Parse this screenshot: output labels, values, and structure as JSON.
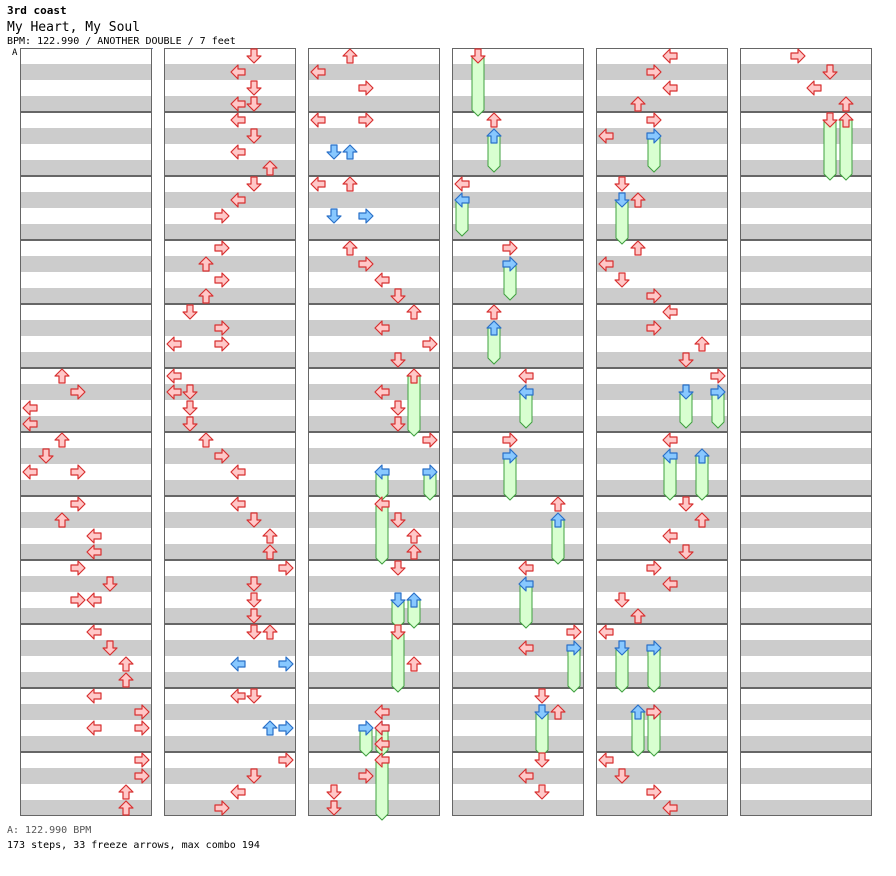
{
  "header": {
    "artist": "3rd coast",
    "title": "My Heart, My Soul",
    "meta": "BPM: 122.990 / ANOTHER DOUBLE / 7 feet",
    "section_marker": "A"
  },
  "footer": {
    "bpm_line": "A: 122.990 BPM",
    "stats_line": "173 steps, 33 freeze arrows, max combo 194"
  },
  "colors": {
    "arrow_red_fill": "#ffc8c8",
    "arrow_red_stroke": "#d83030",
    "arrow_blue_fill": "#88c8ff",
    "arrow_blue_stroke": "#2a70c8",
    "freeze_fill": "#d8ffd0",
    "freeze_stroke": "#40a040",
    "stripe_grey": "#cccccc",
    "measure_border": "#666666"
  },
  "chart_layout": {
    "columns": 6,
    "measures_per_column": 12,
    "rows_per_measure": 8,
    "lanes": 8
  },
  "steps": [
    {
      "c": 0,
      "m": 5,
      "r": 0,
      "l": [
        2
      ]
    },
    {
      "c": 0,
      "m": 5,
      "r": 2,
      "l": [
        3
      ]
    },
    {
      "c": 0,
      "m": 5,
      "r": 4,
      "l": [
        0
      ]
    },
    {
      "c": 0,
      "m": 5,
      "r": 6,
      "l": [
        0
      ]
    },
    {
      "c": 0,
      "m": 6,
      "r": 0,
      "l": [
        2
      ]
    },
    {
      "c": 0,
      "m": 6,
      "r": 2,
      "l": [
        1
      ]
    },
    {
      "c": 0,
      "m": 6,
      "r": 4,
      "l": [
        0,
        3
      ]
    },
    {
      "c": 0,
      "m": 7,
      "r": 0,
      "l": [
        3
      ]
    },
    {
      "c": 0,
      "m": 7,
      "r": 2,
      "l": [
        2
      ]
    },
    {
      "c": 0,
      "m": 7,
      "r": 4,
      "l": [
        4
      ]
    },
    {
      "c": 0,
      "m": 7,
      "r": 6,
      "l": [
        4
      ]
    },
    {
      "c": 0,
      "m": 8,
      "r": 0,
      "l": [
        3
      ]
    },
    {
      "c": 0,
      "m": 8,
      "r": 2,
      "l": [
        5
      ]
    },
    {
      "c": 0,
      "m": 8,
      "r": 4,
      "l": [
        3,
        4
      ]
    },
    {
      "c": 0,
      "m": 9,
      "r": 0,
      "l": [
        4
      ]
    },
    {
      "c": 0,
      "m": 9,
      "r": 2,
      "l": [
        5
      ]
    },
    {
      "c": 0,
      "m": 9,
      "r": 4,
      "l": [
        6
      ]
    },
    {
      "c": 0,
      "m": 9,
      "r": 6,
      "l": [
        6
      ]
    },
    {
      "c": 0,
      "m": 10,
      "r": 0,
      "l": [
        4
      ]
    },
    {
      "c": 0,
      "m": 10,
      "r": 2,
      "l": [
        7
      ]
    },
    {
      "c": 0,
      "m": 10,
      "r": 4,
      "l": [
        4,
        7
      ]
    },
    {
      "c": 0,
      "m": 11,
      "r": 0,
      "l": [
        7
      ]
    },
    {
      "c": 0,
      "m": 11,
      "r": 2,
      "l": [
        7
      ]
    },
    {
      "c": 0,
      "m": 11,
      "r": 4,
      "l": [
        6
      ]
    },
    {
      "c": 0,
      "m": 11,
      "r": 6,
      "l": [
        6
      ]
    },
    {
      "c": 1,
      "m": 0,
      "r": 0,
      "l": [
        5
      ]
    },
    {
      "c": 1,
      "m": 0,
      "r": 2,
      "l": [
        4
      ]
    },
    {
      "c": 1,
      "m": 0,
      "r": 4,
      "l": [
        5
      ]
    },
    {
      "c": 1,
      "m": 0,
      "r": 6,
      "l": [
        4,
        5
      ]
    },
    {
      "c": 1,
      "m": 1,
      "r": 0,
      "l": [
        4
      ]
    },
    {
      "c": 1,
      "m": 1,
      "r": 2,
      "l": [
        5
      ]
    },
    {
      "c": 1,
      "m": 1,
      "r": 4,
      "l": [
        4
      ]
    },
    {
      "c": 1,
      "m": 1,
      "r": 6,
      "l": [
        6
      ]
    },
    {
      "c": 1,
      "m": 2,
      "r": 0,
      "l": [
        5
      ]
    },
    {
      "c": 1,
      "m": 2,
      "r": 2,
      "l": [
        4
      ]
    },
    {
      "c": 1,
      "m": 2,
      "r": 4,
      "l": [
        3
      ]
    },
    {
      "c": 1,
      "m": 3,
      "r": 0,
      "l": [
        3
      ]
    },
    {
      "c": 1,
      "m": 3,
      "r": 2,
      "l": [
        2
      ]
    },
    {
      "c": 1,
      "m": 3,
      "r": 4,
      "l": [
        3
      ]
    },
    {
      "c": 1,
      "m": 3,
      "r": 6,
      "l": [
        2
      ]
    },
    {
      "c": 1,
      "m": 4,
      "r": 0,
      "l": [
        1
      ]
    },
    {
      "c": 1,
      "m": 4,
      "r": 2,
      "l": [
        3
      ]
    },
    {
      "c": 1,
      "m": 4,
      "r": 4,
      "l": [
        0,
        3
      ]
    },
    {
      "c": 1,
      "m": 5,
      "r": 0,
      "l": [
        0
      ]
    },
    {
      "c": 1,
      "m": 5,
      "r": 2,
      "l": [
        0,
        1
      ]
    },
    {
      "c": 1,
      "m": 5,
      "r": 4,
      "l": [
        1
      ]
    },
    {
      "c": 1,
      "m": 5,
      "r": 6,
      "l": [
        1
      ]
    },
    {
      "c": 1,
      "m": 6,
      "r": 0,
      "l": [
        2
      ]
    },
    {
      "c": 1,
      "m": 6,
      "r": 2,
      "l": [
        3
      ]
    },
    {
      "c": 1,
      "m": 6,
      "r": 4,
      "l": [
        4
      ]
    },
    {
      "c": 1,
      "m": 7,
      "r": 0,
      "l": [
        4
      ]
    },
    {
      "c": 1,
      "m": 7,
      "r": 2,
      "l": [
        5
      ]
    },
    {
      "c": 1,
      "m": 7,
      "r": 4,
      "l": [
        6
      ]
    },
    {
      "c": 1,
      "m": 7,
      "r": 6,
      "l": [
        6
      ]
    },
    {
      "c": 1,
      "m": 8,
      "r": 0,
      "l": [
        7
      ]
    },
    {
      "c": 1,
      "m": 8,
      "r": 2,
      "l": [
        5
      ]
    },
    {
      "c": 1,
      "m": 8,
      "r": 4,
      "l": [
        5
      ]
    },
    {
      "c": 1,
      "m": 8,
      "r": 6,
      "l": [
        5
      ]
    },
    {
      "c": 1,
      "m": 9,
      "r": 0,
      "l": [
        5,
        6
      ]
    },
    {
      "c": 1,
      "m": 9,
      "r": 4,
      "l": [
        4,
        7
      ],
      "b": true
    },
    {
      "c": 1,
      "m": 10,
      "r": 0,
      "l": [
        4,
        5
      ]
    },
    {
      "c": 1,
      "m": 10,
      "r": 4,
      "l": [
        6,
        7
      ],
      "b": true
    },
    {
      "c": 1,
      "m": 11,
      "r": 0,
      "l": [
        7
      ]
    },
    {
      "c": 1,
      "m": 11,
      "r": 2,
      "l": [
        5
      ]
    },
    {
      "c": 1,
      "m": 11,
      "r": 4,
      "l": [
        4
      ]
    },
    {
      "c": 1,
      "m": 11,
      "r": 6,
      "l": [
        3
      ]
    },
    {
      "c": 2,
      "m": 0,
      "r": 0,
      "l": [
        2
      ]
    },
    {
      "c": 2,
      "m": 0,
      "r": 2,
      "l": [
        0
      ]
    },
    {
      "c": 2,
      "m": 0,
      "r": 4,
      "l": [
        3
      ]
    },
    {
      "c": 2,
      "m": 1,
      "r": 0,
      "l": [
        0,
        3
      ]
    },
    {
      "c": 2,
      "m": 1,
      "r": 4,
      "l": [
        1,
        2
      ],
      "b": true
    },
    {
      "c": 2,
      "m": 2,
      "r": 0,
      "l": [
        0,
        2
      ]
    },
    {
      "c": 2,
      "m": 2,
      "r": 4,
      "l": [
        1,
        3
      ],
      "b": true
    },
    {
      "c": 2,
      "m": 3,
      "r": 0,
      "l": [
        2
      ]
    },
    {
      "c": 2,
      "m": 3,
      "r": 2,
      "l": [
        3
      ]
    },
    {
      "c": 2,
      "m": 3,
      "r": 4,
      "l": [
        4
      ]
    },
    {
      "c": 2,
      "m": 3,
      "r": 6,
      "l": [
        5
      ]
    },
    {
      "c": 2,
      "m": 4,
      "r": 0,
      "l": [
        6
      ]
    },
    {
      "c": 2,
      "m": 4,
      "r": 2,
      "l": [
        4
      ]
    },
    {
      "c": 2,
      "m": 4,
      "r": 4,
      "l": [
        7
      ]
    },
    {
      "c": 2,
      "m": 4,
      "r": 6,
      "l": [
        5
      ]
    },
    {
      "c": 2,
      "m": 5,
      "r": 2,
      "l": [
        4
      ]
    },
    {
      "c": 2,
      "m": 5,
      "r": 4,
      "l": [
        5
      ]
    },
    {
      "c": 2,
      "m": 5,
      "r": 6,
      "l": [
        5
      ]
    },
    {
      "c": 2,
      "m": 6,
      "r": 0,
      "l": [
        7
      ]
    },
    {
      "c": 2,
      "m": 7,
      "r": 2,
      "l": [
        5
      ]
    },
    {
      "c": 2,
      "m": 7,
      "r": 4,
      "l": [
        6
      ]
    },
    {
      "c": 2,
      "m": 7,
      "r": 6,
      "l": [
        6
      ]
    },
    {
      "c": 2,
      "m": 8,
      "r": 0,
      "l": [
        5
      ]
    },
    {
      "c": 2,
      "m": 9,
      "r": 4,
      "l": [
        6
      ]
    },
    {
      "c": 2,
      "m": 10,
      "r": 2,
      "l": [
        4
      ]
    },
    {
      "c": 2,
      "m": 10,
      "r": 4,
      "l": [
        4
      ]
    },
    {
      "c": 2,
      "m": 10,
      "r": 6,
      "l": [
        4
      ]
    },
    {
      "c": 2,
      "m": 11,
      "r": 2,
      "l": [
        3
      ]
    },
    {
      "c": 2,
      "m": 11,
      "r": 4,
      "l": [
        1
      ]
    },
    {
      "c": 2,
      "m": 11,
      "r": 6,
      "l": [
        1
      ]
    },
    {
      "c": 3,
      "m": 1,
      "r": 0,
      "l": [
        2
      ]
    },
    {
      "c": 3,
      "m": 2,
      "r": 0,
      "l": [
        0
      ]
    },
    {
      "c": 3,
      "m": 3,
      "r": 0,
      "l": [
        3
      ]
    },
    {
      "c": 3,
      "m": 4,
      "r": 0,
      "l": [
        2
      ]
    },
    {
      "c": 3,
      "m": 5,
      "r": 0,
      "l": [
        4
      ]
    },
    {
      "c": 3,
      "m": 6,
      "r": 0,
      "l": [
        3
      ]
    },
    {
      "c": 3,
      "m": 7,
      "r": 0,
      "l": [
        6
      ]
    },
    {
      "c": 3,
      "m": 8,
      "r": 0,
      "l": [
        4
      ]
    },
    {
      "c": 3,
      "m": 9,
      "r": 0,
      "l": [
        7
      ]
    },
    {
      "c": 3,
      "m": 9,
      "r": 2,
      "l": [
        4
      ]
    },
    {
      "c": 3,
      "m": 10,
      "r": 0,
      "l": [
        5
      ]
    },
    {
      "c": 3,
      "m": 10,
      "r": 2,
      "l": [
        6
      ]
    },
    {
      "c": 3,
      "m": 11,
      "r": 0,
      "l": [
        5
      ]
    },
    {
      "c": 3,
      "m": 11,
      "r": 2,
      "l": [
        4
      ]
    },
    {
      "c": 3,
      "m": 11,
      "r": 4,
      "l": [
        5
      ]
    },
    {
      "c": 4,
      "m": 0,
      "r": 0,
      "l": [
        4
      ]
    },
    {
      "c": 4,
      "m": 0,
      "r": 2,
      "l": [
        3
      ]
    },
    {
      "c": 4,
      "m": 0,
      "r": 4,
      "l": [
        4
      ]
    },
    {
      "c": 4,
      "m": 0,
      "r": 6,
      "l": [
        2
      ]
    },
    {
      "c": 4,
      "m": 1,
      "r": 0,
      "l": [
        3
      ]
    },
    {
      "c": 4,
      "m": 1,
      "r": 2,
      "l": [
        0
      ]
    },
    {
      "c": 4,
      "m": 2,
      "r": 0,
      "l": [
        1
      ]
    },
    {
      "c": 4,
      "m": 2,
      "r": 2,
      "l": [
        2
      ]
    },
    {
      "c": 4,
      "m": 3,
      "r": 0,
      "l": [
        2
      ]
    },
    {
      "c": 4,
      "m": 3,
      "r": 2,
      "l": [
        0
      ]
    },
    {
      "c": 4,
      "m": 3,
      "r": 4,
      "l": [
        1
      ]
    },
    {
      "c": 4,
      "m": 3,
      "r": 6,
      "l": [
        3
      ]
    },
    {
      "c": 4,
      "m": 4,
      "r": 0,
      "l": [
        4
      ]
    },
    {
      "c": 4,
      "m": 4,
      "r": 2,
      "l": [
        3
      ]
    },
    {
      "c": 4,
      "m": 4,
      "r": 4,
      "l": [
        6
      ]
    },
    {
      "c": 4,
      "m": 4,
      "r": 6,
      "l": [
        5
      ]
    },
    {
      "c": 4,
      "m": 5,
      "r": 0,
      "l": [
        7
      ]
    },
    {
      "c": 4,
      "m": 6,
      "r": 0,
      "l": [
        4
      ]
    },
    {
      "c": 4,
      "m": 7,
      "r": 0,
      "l": [
        5
      ]
    },
    {
      "c": 4,
      "m": 7,
      "r": 2,
      "l": [
        6
      ]
    },
    {
      "c": 4,
      "m": 7,
      "r": 4,
      "l": [
        4
      ]
    },
    {
      "c": 4,
      "m": 7,
      "r": 6,
      "l": [
        5
      ]
    },
    {
      "c": 4,
      "m": 8,
      "r": 0,
      "l": [
        3
      ]
    },
    {
      "c": 4,
      "m": 8,
      "r": 2,
      "l": [
        4
      ]
    },
    {
      "c": 4,
      "m": 8,
      "r": 4,
      "l": [
        1
      ]
    },
    {
      "c": 4,
      "m": 8,
      "r": 6,
      "l": [
        2
      ]
    },
    {
      "c": 4,
      "m": 9,
      "r": 0,
      "l": [
        0
      ]
    },
    {
      "c": 4,
      "m": 10,
      "r": 2,
      "l": [
        3
      ]
    },
    {
      "c": 4,
      "m": 11,
      "r": 0,
      "l": [
        0
      ]
    },
    {
      "c": 4,
      "m": 11,
      "r": 2,
      "l": [
        1
      ]
    },
    {
      "c": 4,
      "m": 11,
      "r": 4,
      "l": [
        3
      ]
    },
    {
      "c": 4,
      "m": 11,
      "r": 6,
      "l": [
        4
      ]
    },
    {
      "c": 5,
      "m": 0,
      "r": 0,
      "l": [
        3
      ]
    },
    {
      "c": 5,
      "m": 0,
      "r": 2,
      "l": [
        5
      ]
    },
    {
      "c": 5,
      "m": 0,
      "r": 4,
      "l": [
        4
      ]
    },
    {
      "c": 5,
      "m": 0,
      "r": 6,
      "l": [
        6
      ]
    }
  ],
  "freezes": [
    {
      "c": 2,
      "lane": 6,
      "sm": 5,
      "sr": 0,
      "em": 5,
      "er": 7
    },
    {
      "c": 2,
      "lane": 4,
      "sm": 6,
      "sr": 4,
      "em": 6,
      "er": 7,
      "b": true
    },
    {
      "c": 2,
      "lane": 7,
      "sm": 6,
      "sr": 4,
      "em": 6,
      "er": 7,
      "b": true
    },
    {
      "c": 2,
      "lane": 4,
      "sm": 7,
      "sr": 0,
      "em": 7,
      "er": 7
    },
    {
      "c": 2,
      "lane": 5,
      "sm": 8,
      "sr": 4,
      "em": 8,
      "er": 7,
      "b": true
    },
    {
      "c": 2,
      "lane": 6,
      "sm": 8,
      "sr": 4,
      "em": 8,
      "er": 7,
      "b": true
    },
    {
      "c": 2,
      "lane": 5,
      "sm": 9,
      "sr": 0,
      "em": 9,
      "er": 7
    },
    {
      "c": 2,
      "lane": 3,
      "sm": 10,
      "sr": 4,
      "em": 10,
      "er": 7,
      "b": true
    },
    {
      "c": 2,
      "lane": 4,
      "sm": 10,
      "sr": 4,
      "em": 10,
      "er": 7,
      "b": true
    },
    {
      "c": 2,
      "lane": 4,
      "sm": 11,
      "sr": 0,
      "em": 11,
      "er": 7
    },
    {
      "c": 3,
      "lane": 1,
      "sm": 0,
      "sr": 0,
      "em": 0,
      "er": 7
    },
    {
      "c": 3,
      "lane": 2,
      "sm": 1,
      "sr": 2,
      "em": 1,
      "er": 6,
      "b": true
    },
    {
      "c": 3,
      "lane": 0,
      "sm": 2,
      "sr": 2,
      "em": 2,
      "er": 6,
      "b": true
    },
    {
      "c": 3,
      "lane": 3,
      "sm": 3,
      "sr": 2,
      "em": 3,
      "er": 6,
      "b": true
    },
    {
      "c": 3,
      "lane": 2,
      "sm": 4,
      "sr": 2,
      "em": 4,
      "er": 6,
      "b": true
    },
    {
      "c": 3,
      "lane": 4,
      "sm": 5,
      "sr": 2,
      "em": 5,
      "er": 6,
      "b": true
    },
    {
      "c": 3,
      "lane": 3,
      "sm": 6,
      "sr": 2,
      "em": 6,
      "er": 7,
      "b": true
    },
    {
      "c": 3,
      "lane": 6,
      "sm": 7,
      "sr": 2,
      "em": 7,
      "er": 7,
      "b": true
    },
    {
      "c": 3,
      "lane": 4,
      "sm": 8,
      "sr": 2,
      "em": 8,
      "er": 7,
      "b": true
    },
    {
      "c": 3,
      "lane": 7,
      "sm": 9,
      "sr": 2,
      "em": 9,
      "er": 7,
      "b": true
    },
    {
      "c": 3,
      "lane": 5,
      "sm": 10,
      "sr": 2,
      "em": 10,
      "er": 7,
      "b": true
    },
    {
      "c": 4,
      "lane": 3,
      "sm": 1,
      "sr": 2,
      "em": 1,
      "er": 6,
      "b": true
    },
    {
      "c": 4,
      "lane": 1,
      "sm": 2,
      "sr": 2,
      "em": 2,
      "er": 7,
      "b": true
    },
    {
      "c": 4,
      "lane": 5,
      "sm": 5,
      "sr": 2,
      "em": 5,
      "er": 6,
      "b": true
    },
    {
      "c": 4,
      "lane": 7,
      "sm": 5,
      "sr": 2,
      "em": 5,
      "er": 6,
      "b": true
    },
    {
      "c": 4,
      "lane": 4,
      "sm": 6,
      "sr": 2,
      "em": 6,
      "er": 7,
      "b": true
    },
    {
      "c": 4,
      "lane": 6,
      "sm": 6,
      "sr": 2,
      "em": 6,
      "er": 7,
      "b": true
    },
    {
      "c": 4,
      "lane": 1,
      "sm": 9,
      "sr": 2,
      "em": 9,
      "er": 7,
      "b": true
    },
    {
      "c": 4,
      "lane": 3,
      "sm": 9,
      "sr": 2,
      "em": 9,
      "er": 7,
      "b": true
    },
    {
      "c": 4,
      "lane": 2,
      "sm": 10,
      "sr": 2,
      "em": 10,
      "er": 7,
      "b": true
    },
    {
      "c": 4,
      "lane": 3,
      "sm": 10,
      "sr": 2,
      "em": 10,
      "er": 7,
      "b": true
    },
    {
      "c": 5,
      "lane": 5,
      "sm": 1,
      "sr": 0,
      "em": 1,
      "er": 7
    },
    {
      "c": 5,
      "lane": 6,
      "sm": 1,
      "sr": 0,
      "em": 1,
      "er": 7
    }
  ]
}
